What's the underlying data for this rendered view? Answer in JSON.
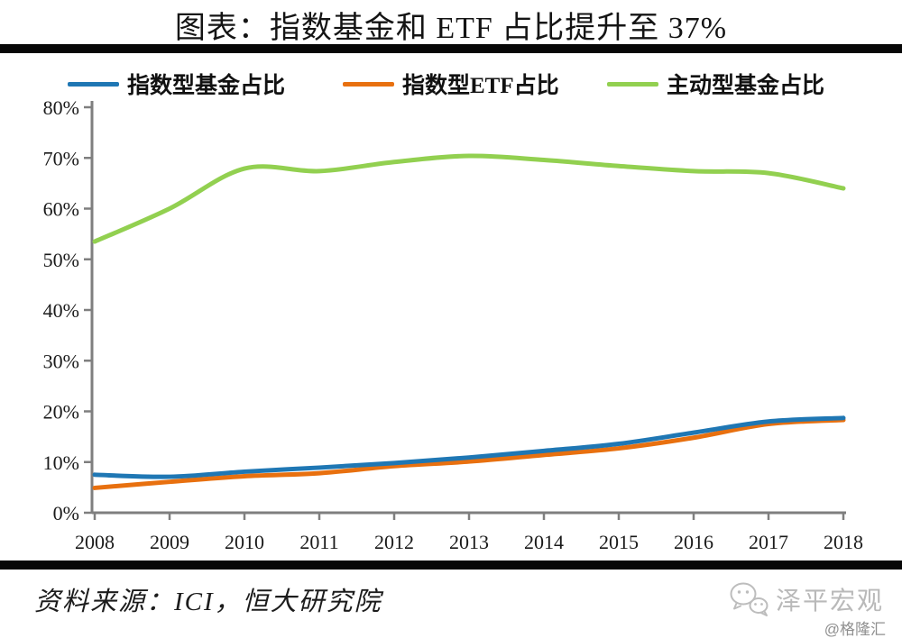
{
  "header": {
    "title": "图表：指数基金和 ETF 占比提升至 37%"
  },
  "chart_data": {
    "type": "line",
    "title": "图表：指数基金和 ETF 占比提升至 37%",
    "x": [
      "2008",
      "2009",
      "2010",
      "2011",
      "2012",
      "2013",
      "2014",
      "2015",
      "2016",
      "2017",
      "2018"
    ],
    "ylim": [
      0,
      80
    ],
    "ytick_step": 10,
    "y_unit": "%",
    "grid": false,
    "legend_position": "top",
    "axis_color": "#7f7f7f",
    "series": [
      {
        "name": "指数型基金占比",
        "color": "#1F77B4",
        "values": [
          7.5,
          7.1,
          8.1,
          8.9,
          9.8,
          10.9,
          12.2,
          13.6,
          15.8,
          18.0,
          18.7
        ]
      },
      {
        "name": "指数型ETF占比",
        "color": "#E8700F",
        "values": [
          4.9,
          6.1,
          7.2,
          7.8,
          9.2,
          10.1,
          11.4,
          12.7,
          14.8,
          17.5,
          18.3
        ]
      },
      {
        "name": "主动型基金占比",
        "color": "#92D050",
        "values": [
          53.5,
          60.0,
          67.9,
          67.4,
          69.2,
          70.4,
          69.6,
          68.4,
          67.4,
          67.0,
          64.0
        ]
      }
    ]
  },
  "footer": {
    "source": "资料来源：ICI，恒大研究院",
    "brand": "泽平宏观",
    "watermark": "@格隆汇"
  },
  "icons": {
    "wechat": "wechat-icon"
  }
}
